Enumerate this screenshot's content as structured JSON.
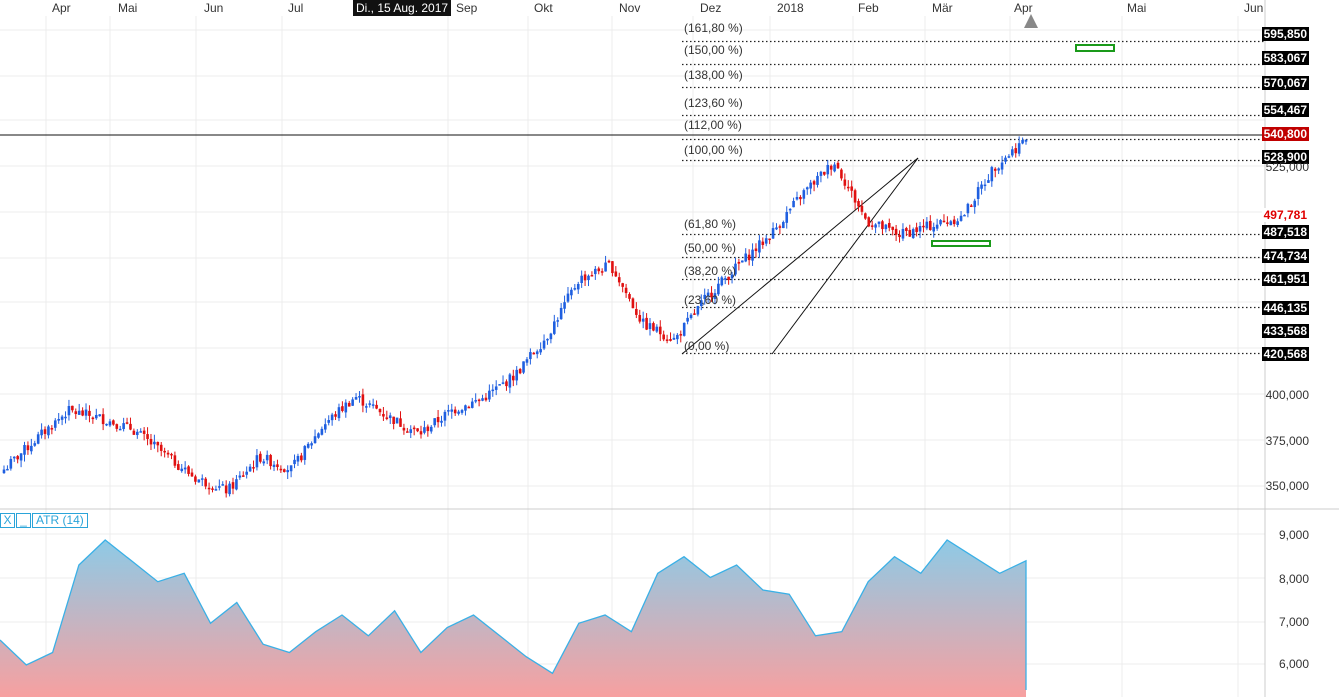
{
  "header": {
    "months": [
      "Apr",
      "Mai",
      "Jun",
      "Jul",
      "Sep",
      "Okt",
      "Nov",
      "Dez",
      "2018",
      "Feb",
      "Mär",
      "Apr",
      "Mai",
      "Jun"
    ],
    "crosshair_date": "Di., 15 Aug. 2017"
  },
  "price_axis": {
    "labels": [
      "400,000",
      "375,000",
      "350,000",
      "525,000"
    ],
    "fib_prices": [
      "595,850",
      "583,067",
      "570,067",
      "554,467",
      "528,900",
      "487,518",
      "474,734",
      "461,951",
      "446,135",
      "433,568",
      "420,568"
    ],
    "current_price": "540,800",
    "marker_price": "497,781"
  },
  "fibonacci": {
    "levels": [
      "(161,80 %)",
      "(150,00 %)",
      "(138,00 %)",
      "(123,60 %)",
      "(112,00 %)",
      "(100,00 %)",
      "(61,80 %)",
      "(50,00 %)",
      "(38,20 %)",
      "(23,60 %)",
      "(0,00 %)"
    ]
  },
  "indicator": {
    "title": "ATR (14)",
    "close_label": "X",
    "minimize_label": "_",
    "axis_labels": [
      "9,000",
      "8,000",
      "7,000",
      "6,000"
    ]
  },
  "colors": {
    "up_candle": "#1f5fe0",
    "down_candle": "#e01010",
    "atr_line": "#3ab0e6",
    "atr_fill_top": "#8ecae6",
    "atr_fill_bottom": "#f7a0a0",
    "target_box": "#1a9a1a"
  },
  "chart_data": {
    "type": "candlestick",
    "price_series": [
      {
        "x": "Apr",
        "y": 355
      },
      {
        "x": "Apr",
        "y": 372
      },
      {
        "x": "Apr",
        "y": 388
      },
      {
        "x": "Mai",
        "y": 384
      },
      {
        "x": "Mai",
        "y": 378
      },
      {
        "x": "Mai",
        "y": 364
      },
      {
        "x": "Jun",
        "y": 350
      },
      {
        "x": "Jun",
        "y": 343
      },
      {
        "x": "Jun",
        "y": 362
      },
      {
        "x": "Jul",
        "y": 355
      },
      {
        "x": "Jul",
        "y": 380
      },
      {
        "x": "Jul",
        "y": 396
      },
      {
        "x": "Aug",
        "y": 385
      },
      {
        "x": "Aug",
        "y": 375
      },
      {
        "x": "Sep",
        "y": 388
      },
      {
        "x": "Sep",
        "y": 395
      },
      {
        "x": "Okt",
        "y": 408
      },
      {
        "x": "Okt",
        "y": 430
      },
      {
        "x": "Nov",
        "y": 462
      },
      {
        "x": "Nov",
        "y": 470
      },
      {
        "x": "Nov",
        "y": 437
      },
      {
        "x": "Dez",
        "y": 428
      },
      {
        "x": "Dez",
        "y": 452
      },
      {
        "x": "2018",
        "y": 470
      },
      {
        "x": "2018",
        "y": 487
      },
      {
        "x": "Feb",
        "y": 510
      },
      {
        "x": "Feb",
        "y": 528
      },
      {
        "x": "Feb",
        "y": 495
      },
      {
        "x": "Mär",
        "y": 487
      },
      {
        "x": "Mär",
        "y": 492
      },
      {
        "x": "Mär",
        "y": 497
      },
      {
        "x": "Apr",
        "y": 525
      },
      {
        "x": "Apr",
        "y": 540.8
      }
    ],
    "atr_series": [
      6.6,
      6.0,
      6.3,
      8.4,
      9.0,
      8.5,
      8.0,
      8.2,
      7.0,
      7.5,
      6.5,
      6.3,
      6.8,
      7.2,
      6.7,
      7.3,
      6.3,
      6.9,
      7.2,
      6.7,
      6.2,
      5.8,
      7.0,
      7.2,
      6.8,
      8.2,
      8.6,
      8.1,
      8.4,
      7.8,
      7.7,
      6.7,
      6.8,
      8.0,
      8.6,
      8.2,
      9.0,
      8.6,
      8.2,
      8.5
    ],
    "fib_levels": [
      {
        "label": "(161,80 %)",
        "price": 595.85
      },
      {
        "label": "(150,00 %)",
        "price": 583.067
      },
      {
        "label": "(138,00 %)",
        "price": 570.067
      },
      {
        "label": "(123,60 %)",
        "price": 554.467
      },
      {
        "label": "(112,00 %)",
        "price": 540.8
      },
      {
        "label": "(100,00 %)",
        "price": 528.9
      },
      {
        "label": "(61,80 %)",
        "price": 487.518
      },
      {
        "label": "(50,00 %)",
        "price": 474.734
      },
      {
        "label": "(38,20 %)",
        "price": 461.951
      },
      {
        "label": "(23,60 %)",
        "price": 446.135
      },
      {
        "label": "(0,00 %)",
        "price": 420.568
      }
    ],
    "ylim": [
      335,
      610
    ],
    "atr_ylim": [
      5.4,
      9.6
    ]
  }
}
